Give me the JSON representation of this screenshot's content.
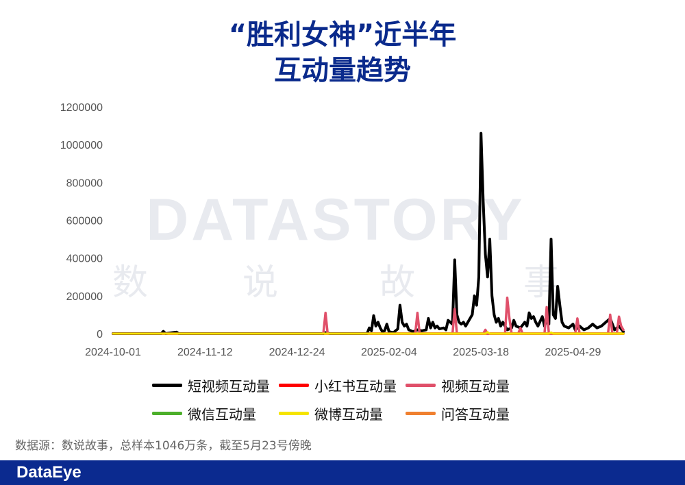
{
  "title": {
    "line1": "“胜利女神”近半年",
    "line2": "互动量趋势"
  },
  "watermark": {
    "en": "DATASTORY",
    "cn": [
      "数",
      "说",
      "故",
      "事"
    ]
  },
  "chart_data": {
    "type": "line",
    "ylim": [
      0,
      1200000
    ],
    "yticks": [
      0,
      200000,
      400000,
      600000,
      800000,
      1000000,
      1200000
    ],
    "ytick_labels": [
      "0",
      "200000",
      "400000",
      "600000",
      "800000",
      "1000000",
      "1200000"
    ],
    "xrange": [
      "2024-10-01",
      "2025-05-22"
    ],
    "xtick_labels": [
      "2024-10-01",
      "2024-11-12",
      "2024-12-24",
      "2025-02-04",
      "2025-03-18",
      "2025-04-29"
    ],
    "series": [
      {
        "name": "短视频互动量",
        "color": "#000000",
        "points": [
          [
            "2024-10-01",
            0
          ],
          [
            "2024-10-23",
            0
          ],
          [
            "2024-10-24",
            12000
          ],
          [
            "2024-10-25",
            0
          ],
          [
            "2024-10-30",
            8000
          ],
          [
            "2024-10-31",
            0
          ],
          [
            "2025-01-05",
            0
          ],
          [
            "2025-01-06",
            5000
          ],
          [
            "2025-01-08",
            0
          ],
          [
            "2025-01-25",
            0
          ],
          [
            "2025-01-26",
            30000
          ],
          [
            "2025-01-27",
            15000
          ],
          [
            "2025-01-28",
            95000
          ],
          [
            "2025-01-29",
            40000
          ],
          [
            "2025-01-30",
            60000
          ],
          [
            "2025-01-31",
            30000
          ],
          [
            "2025-02-01",
            10000
          ],
          [
            "2025-02-02",
            15000
          ],
          [
            "2025-02-03",
            50000
          ],
          [
            "2025-02-04",
            10000
          ],
          [
            "2025-02-06",
            5000
          ],
          [
            "2025-02-08",
            25000
          ],
          [
            "2025-02-09",
            150000
          ],
          [
            "2025-02-10",
            60000
          ],
          [
            "2025-02-11",
            40000
          ],
          [
            "2025-02-12",
            50000
          ],
          [
            "2025-02-13",
            20000
          ],
          [
            "2025-02-15",
            10000
          ],
          [
            "2025-02-17",
            20000
          ],
          [
            "2025-02-19",
            15000
          ],
          [
            "2025-02-21",
            20000
          ],
          [
            "2025-02-22",
            80000
          ],
          [
            "2025-02-23",
            30000
          ],
          [
            "2025-02-24",
            60000
          ],
          [
            "2025-02-25",
            30000
          ],
          [
            "2025-02-26",
            40000
          ],
          [
            "2025-02-27",
            25000
          ],
          [
            "2025-03-01",
            30000
          ],
          [
            "2025-03-02",
            20000
          ],
          [
            "2025-03-03",
            70000
          ],
          [
            "2025-03-05",
            50000
          ],
          [
            "2025-03-06",
            390000
          ],
          [
            "2025-03-07",
            100000
          ],
          [
            "2025-03-08",
            60000
          ],
          [
            "2025-03-09",
            50000
          ],
          [
            "2025-03-10",
            60000
          ],
          [
            "2025-03-11",
            40000
          ],
          [
            "2025-03-12",
            60000
          ],
          [
            "2025-03-13",
            80000
          ],
          [
            "2025-03-14",
            100000
          ],
          [
            "2025-03-15",
            200000
          ],
          [
            "2025-03-16",
            150000
          ],
          [
            "2025-03-17",
            300000
          ],
          [
            "2025-03-18",
            1060000
          ],
          [
            "2025-03-19",
            700000
          ],
          [
            "2025-03-20",
            420000
          ],
          [
            "2025-03-21",
            300000
          ],
          [
            "2025-03-22",
            500000
          ],
          [
            "2025-03-23",
            200000
          ],
          [
            "2025-03-24",
            100000
          ],
          [
            "2025-03-25",
            60000
          ],
          [
            "2025-03-26",
            80000
          ],
          [
            "2025-03-27",
            40000
          ],
          [
            "2025-03-28",
            60000
          ],
          [
            "2025-03-30",
            20000
          ],
          [
            "2025-04-01",
            30000
          ],
          [
            "2025-04-02",
            70000
          ],
          [
            "2025-04-03",
            40000
          ],
          [
            "2025-04-05",
            30000
          ],
          [
            "2025-04-07",
            60000
          ],
          [
            "2025-04-08",
            40000
          ],
          [
            "2025-04-09",
            110000
          ],
          [
            "2025-04-10",
            80000
          ],
          [
            "2025-04-11",
            90000
          ],
          [
            "2025-04-12",
            60000
          ],
          [
            "2025-04-13",
            40000
          ],
          [
            "2025-04-15",
            90000
          ],
          [
            "2025-04-16",
            40000
          ],
          [
            "2025-04-17",
            70000
          ],
          [
            "2025-04-18",
            50000
          ],
          [
            "2025-04-19",
            500000
          ],
          [
            "2025-04-20",
            100000
          ],
          [
            "2025-04-21",
            80000
          ],
          [
            "2025-04-22",
            250000
          ],
          [
            "2025-04-23",
            150000
          ],
          [
            "2025-04-24",
            60000
          ],
          [
            "2025-04-25",
            40000
          ],
          [
            "2025-04-27",
            30000
          ],
          [
            "2025-04-29",
            50000
          ],
          [
            "2025-04-30",
            20000
          ],
          [
            "2025-05-02",
            40000
          ],
          [
            "2025-05-04",
            20000
          ],
          [
            "2025-05-06",
            30000
          ],
          [
            "2025-05-08",
            50000
          ],
          [
            "2025-05-10",
            30000
          ],
          [
            "2025-05-12",
            40000
          ],
          [
            "2025-05-14",
            60000
          ],
          [
            "2025-05-16",
            80000
          ],
          [
            "2025-05-18",
            20000
          ],
          [
            "2025-05-20",
            40000
          ],
          [
            "2025-05-22",
            10000
          ]
        ]
      },
      {
        "name": "小红书互动量",
        "color": "#ff0000",
        "points": [
          [
            "2024-10-01",
            0
          ],
          [
            "2025-05-22",
            0
          ]
        ]
      },
      {
        "name": "视频互动量",
        "color": "#e0506a",
        "points": [
          [
            "2024-10-01",
            0
          ],
          [
            "2025-01-05",
            0
          ],
          [
            "2025-01-06",
            110000
          ],
          [
            "2025-01-07",
            0
          ],
          [
            "2025-02-16",
            0
          ],
          [
            "2025-02-17",
            110000
          ],
          [
            "2025-02-18",
            0
          ],
          [
            "2025-03-05",
            0
          ],
          [
            "2025-03-06",
            130000
          ],
          [
            "2025-03-07",
            0
          ],
          [
            "2025-03-19",
            0
          ],
          [
            "2025-03-20",
            20000
          ],
          [
            "2025-03-21",
            0
          ],
          [
            "2025-03-29",
            0
          ],
          [
            "2025-03-30",
            190000
          ],
          [
            "2025-03-31",
            80000
          ],
          [
            "2025-04-01",
            0
          ],
          [
            "2025-04-04",
            0
          ],
          [
            "2025-04-05",
            30000
          ],
          [
            "2025-04-06",
            0
          ],
          [
            "2025-04-16",
            0
          ],
          [
            "2025-04-17",
            140000
          ],
          [
            "2025-04-18",
            0
          ],
          [
            "2025-04-30",
            0
          ],
          [
            "2025-05-01",
            80000
          ],
          [
            "2025-05-02",
            0
          ],
          [
            "2025-05-15",
            0
          ],
          [
            "2025-05-16",
            100000
          ],
          [
            "2025-05-17",
            0
          ],
          [
            "2025-05-19",
            0
          ],
          [
            "2025-05-20",
            90000
          ],
          [
            "2025-05-21",
            40000
          ],
          [
            "2025-05-22",
            20000
          ]
        ]
      },
      {
        "name": "微信互动量",
        "color": "#4caf2a",
        "points": [
          [
            "2024-10-01",
            0
          ],
          [
            "2025-05-22",
            0
          ]
        ]
      },
      {
        "name": "微博互动量",
        "color": "#f5e400",
        "points": [
          [
            "2024-10-01",
            0
          ],
          [
            "2025-03-20",
            0
          ],
          [
            "2025-03-21",
            8000
          ],
          [
            "2025-03-22",
            0
          ],
          [
            "2025-04-18",
            0
          ],
          [
            "2025-04-19",
            6000
          ],
          [
            "2025-04-20",
            0
          ],
          [
            "2025-05-22",
            0
          ]
        ]
      },
      {
        "name": "问答互动量",
        "color": "#f08030",
        "points": [
          [
            "2024-10-01",
            0
          ],
          [
            "2025-05-22",
            0
          ]
        ]
      }
    ]
  },
  "source_note": "数据源：数说故事，总样本1046万条，截至5月23号傍晚",
  "footer": {
    "brand": "DataEye",
    "bar_color": "#0b2a8f"
  }
}
